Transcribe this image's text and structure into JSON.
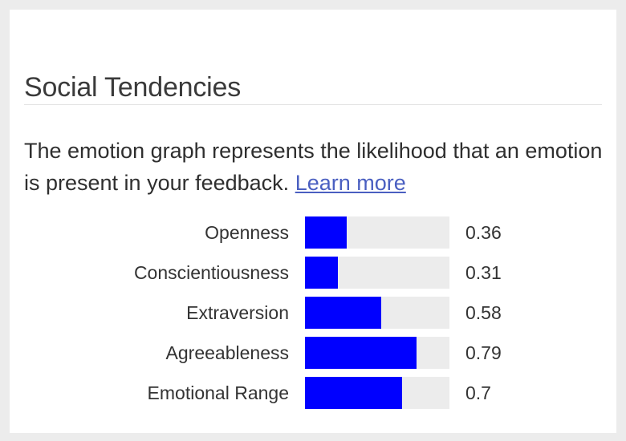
{
  "panel": {
    "title": "Social Tendencies",
    "description": "The emotion graph represents the likelihood that an emotion is present in your feedback.",
    "learn_more": "Learn more"
  },
  "colors": {
    "bar_fill": "#0000ff",
    "bar_track": "#ececec",
    "link": "#4a5fc1"
  },
  "rows": [
    {
      "label": "Openness",
      "value": "0.36",
      "fill": 0.29
    },
    {
      "label": "Conscientiousness",
      "value": "0.31",
      "fill": 0.23
    },
    {
      "label": "Extraversion",
      "value": "0.58",
      "fill": 0.53
    },
    {
      "label": "Agreeableness",
      "value": "0.79",
      "fill": 0.77
    },
    {
      "label": "Emotional Range",
      "value": "0.7",
      "fill": 0.67
    }
  ]
}
